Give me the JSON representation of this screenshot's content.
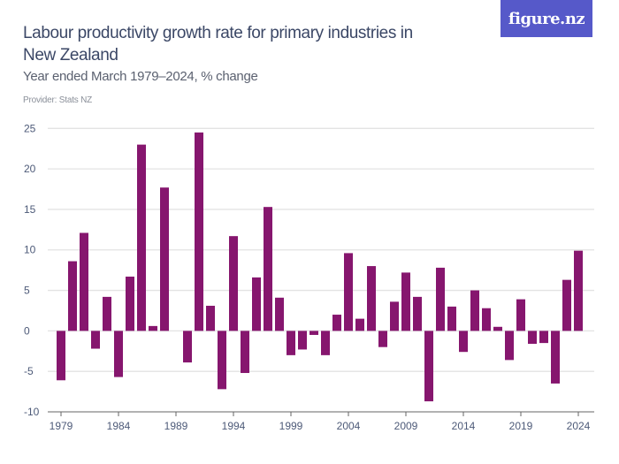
{
  "header": {
    "title": "Labour productivity growth rate for primary industries in New Zealand",
    "subtitle": "Year ended March 1979–2024, % change",
    "provider": "Provider: Stats NZ",
    "logo_text": "figure.nz",
    "logo_color": "#5659c9"
  },
  "chart_data": {
    "type": "bar",
    "title": "Labour productivity growth rate for primary industries in New Zealand",
    "subtitle": "Year ended March 1979–2024, % change",
    "xlabel": "",
    "ylabel": "",
    "ylim": [
      -10,
      25
    ],
    "yticks": [
      "25",
      "20",
      "15",
      "10",
      "5",
      "0",
      "-5",
      "-10"
    ],
    "ytick_values": [
      25,
      20,
      15,
      10,
      5,
      0,
      -5,
      -10
    ],
    "xticks": [
      "1979",
      "1984",
      "1989",
      "1994",
      "1999",
      "2004",
      "2009",
      "2014",
      "2019",
      "2024"
    ],
    "grid": true,
    "bar_color": "#86166e",
    "categories": [
      1979,
      1980,
      1981,
      1982,
      1983,
      1984,
      1985,
      1986,
      1987,
      1988,
      1989,
      1990,
      1991,
      1992,
      1993,
      1994,
      1995,
      1996,
      1997,
      1998,
      1999,
      2000,
      2001,
      2002,
      2003,
      2004,
      2005,
      2006,
      2007,
      2008,
      2009,
      2010,
      2011,
      2012,
      2013,
      2014,
      2015,
      2016,
      2017,
      2018,
      2019,
      2020,
      2021,
      2022,
      2023,
      2024
    ],
    "values": [
      -6.1,
      8.6,
      12.1,
      -2.2,
      4.2,
      -5.7,
      6.7,
      23.0,
      0.6,
      17.7,
      0,
      -3.9,
      24.5,
      3.1,
      -7.2,
      11.7,
      -5.2,
      6.6,
      15.3,
      4.1,
      -3.0,
      -2.3,
      -0.5,
      -3.0,
      2.0,
      9.6,
      1.5,
      8.0,
      -2.0,
      3.6,
      7.2,
      4.2,
      -8.7,
      7.8,
      3.0,
      -2.6,
      5.0,
      2.8,
      0.5,
      -3.6,
      3.9,
      -1.6,
      -1.5,
      -6.5,
      6.3,
      9.9
    ]
  }
}
